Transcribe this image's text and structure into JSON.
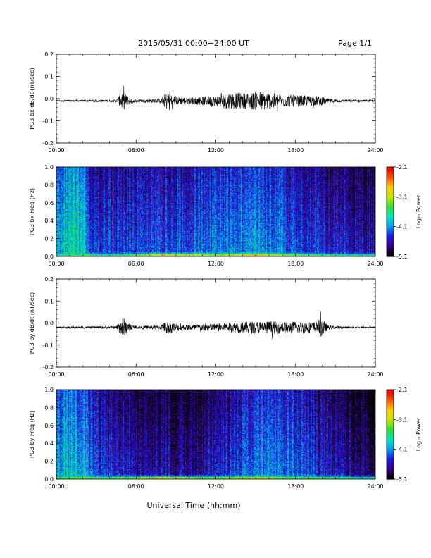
{
  "header": {
    "title": "2015/05/31  00:00−24:00 UT",
    "page": "Page 1/1"
  },
  "footer": {
    "xlabel": "Universal Time (hh:mm)"
  },
  "colorbar": {
    "label": "Log₁₀ Power",
    "tick_labels": [
      "-2.1",
      "-3.1",
      "-4.1",
      "-5.1"
    ],
    "range": [
      -5.1,
      -2.1
    ],
    "colormap": "rainbow",
    "colors": [
      "#000000",
      "#3a0090",
      "#1e1ee6",
      "#00a0f0",
      "#00e6b4",
      "#32dc32",
      "#c8e600",
      "#ffc800",
      "#ff5000",
      "#e60000"
    ]
  },
  "chart_data": [
    {
      "type": "line",
      "ylabel": "PG3 bx dB/dt (nT/sec)",
      "xlim": [
        0,
        24
      ],
      "ylim": [
        -0.2,
        0.2
      ],
      "x_tick_labels": [
        "00:00",
        "06:00",
        "12:00",
        "18:00",
        "24:00"
      ],
      "y_tick_labels": [
        "0.2",
        "0.1",
        "0.0",
        "-0.1",
        "-0.2"
      ],
      "baseline": -0.01,
      "color": "#000000",
      "activity_envelope": [
        {
          "x": 0.0,
          "amp": 0.004
        },
        {
          "x": 4.5,
          "amp": 0.005
        },
        {
          "x": 5.0,
          "amp": 0.045
        },
        {
          "x": 5.4,
          "amp": 0.02
        },
        {
          "x": 6.0,
          "amp": 0.006
        },
        {
          "x": 7.8,
          "amp": 0.01
        },
        {
          "x": 8.5,
          "amp": 0.05
        },
        {
          "x": 9.0,
          "amp": 0.02
        },
        {
          "x": 10.0,
          "amp": 0.015
        },
        {
          "x": 12.0,
          "amp": 0.025
        },
        {
          "x": 13.0,
          "amp": 0.04
        },
        {
          "x": 14.0,
          "amp": 0.035
        },
        {
          "x": 15.5,
          "amp": 0.045
        },
        {
          "x": 17.0,
          "amp": 0.03
        },
        {
          "x": 20.0,
          "amp": 0.02
        },
        {
          "x": 20.3,
          "amp": 0.012
        },
        {
          "x": 21.5,
          "amp": 0.006
        },
        {
          "x": 24.0,
          "amp": 0.004
        }
      ]
    },
    {
      "type": "heatmap",
      "ylabel": "PG3 bx Freq (Hz)",
      "xlim": [
        0,
        24
      ],
      "ylim": [
        0.0,
        1.0
      ],
      "x_tick_labels": [
        "00:00",
        "06:00",
        "12:00",
        "18:00",
        "24:00"
      ],
      "y_tick_labels": [
        "1.0",
        "0.8",
        "0.6",
        "0.4",
        "0.2",
        "0.0"
      ],
      "zlim": [
        -5.1,
        -2.1
      ],
      "base_level": -4.5,
      "low_freq_levels": [
        {
          "x": 0,
          "z": -3.9
        },
        {
          "x": 2,
          "z": -3.8
        },
        {
          "x": 4,
          "z": -4.0
        },
        {
          "x": 6,
          "z": -3.7
        },
        {
          "x": 8,
          "z": -3.1
        },
        {
          "x": 9,
          "z": -3.3
        },
        {
          "x": 12,
          "z": -3.5
        },
        {
          "x": 15,
          "z": -3.1
        },
        {
          "x": 17,
          "z": -3.6
        },
        {
          "x": 20,
          "z": -3.8
        },
        {
          "x": 24,
          "z": -4.0
        }
      ],
      "broadband_levels": [
        {
          "x": 0,
          "z": -3.9
        },
        {
          "x": 2,
          "z": -3.7
        },
        {
          "x": 2.6,
          "z": -4.3
        },
        {
          "x": 5,
          "z": -4.4
        },
        {
          "x": 8,
          "z": -4.3
        },
        {
          "x": 11,
          "z": -4.2
        },
        {
          "x": 15,
          "z": -4.0
        },
        {
          "x": 19,
          "z": -4.4
        },
        {
          "x": 24,
          "z": -4.6
        }
      ]
    },
    {
      "type": "line",
      "ylabel": "PG3 by dB/dt (nT/sec)",
      "xlim": [
        0,
        24
      ],
      "ylim": [
        -0.2,
        0.2
      ],
      "x_tick_labels": [
        "00:00",
        "06:00",
        "12:00",
        "18:00",
        "24:00"
      ],
      "y_tick_labels": [
        "0.2",
        "0.1",
        "0.0",
        "-0.1",
        "-0.2"
      ],
      "baseline": -0.02,
      "color": "#000000",
      "activity_envelope": [
        {
          "x": 0.0,
          "amp": 0.004
        },
        {
          "x": 4.5,
          "amp": 0.006
        },
        {
          "x": 5.0,
          "amp": 0.05
        },
        {
          "x": 5.4,
          "amp": 0.02
        },
        {
          "x": 6.0,
          "amp": 0.006
        },
        {
          "x": 7.8,
          "amp": 0.01
        },
        {
          "x": 8.3,
          "amp": 0.03
        },
        {
          "x": 9.5,
          "amp": 0.012
        },
        {
          "x": 12.0,
          "amp": 0.018
        },
        {
          "x": 14.0,
          "amp": 0.025
        },
        {
          "x": 15.5,
          "amp": 0.03
        },
        {
          "x": 19.5,
          "amp": 0.025
        },
        {
          "x": 20.0,
          "amp": 0.045
        },
        {
          "x": 20.4,
          "amp": 0.01
        },
        {
          "x": 21.5,
          "amp": 0.005
        },
        {
          "x": 24.0,
          "amp": 0.004
        }
      ]
    },
    {
      "type": "heatmap",
      "ylabel": "PG3 by Freq (Hz)",
      "xlim": [
        0,
        24
      ],
      "ylim": [
        0.0,
        1.0
      ],
      "x_tick_labels": [
        "00:00",
        "06:00",
        "12:00",
        "18:00",
        "24:00"
      ],
      "y_tick_labels": [
        "1.0",
        "0.8",
        "0.6",
        "0.4",
        "0.2",
        "0.0"
      ],
      "zlim": [
        -5.1,
        -2.1
      ],
      "base_level": -4.6,
      "low_freq_levels": [
        {
          "x": 0,
          "z": -3.9
        },
        {
          "x": 2,
          "z": -3.7
        },
        {
          "x": 4,
          "z": -3.8
        },
        {
          "x": 6,
          "z": -3.6
        },
        {
          "x": 8,
          "z": -3.3
        },
        {
          "x": 10,
          "z": -3.6
        },
        {
          "x": 12,
          "z": -3.7
        },
        {
          "x": 15,
          "z": -3.4
        },
        {
          "x": 17,
          "z": -3.7
        },
        {
          "x": 20,
          "z": -3.8
        },
        {
          "x": 24,
          "z": -4.1
        }
      ],
      "broadband_levels": [
        {
          "x": 0,
          "z": -4.0
        },
        {
          "x": 2,
          "z": -3.9
        },
        {
          "x": 3,
          "z": -4.4
        },
        {
          "x": 6,
          "z": -4.6
        },
        {
          "x": 10,
          "z": -4.7
        },
        {
          "x": 14,
          "z": -4.3
        },
        {
          "x": 16,
          "z": -4.0
        },
        {
          "x": 20,
          "z": -4.5
        },
        {
          "x": 24,
          "z": -4.8
        }
      ]
    }
  ]
}
